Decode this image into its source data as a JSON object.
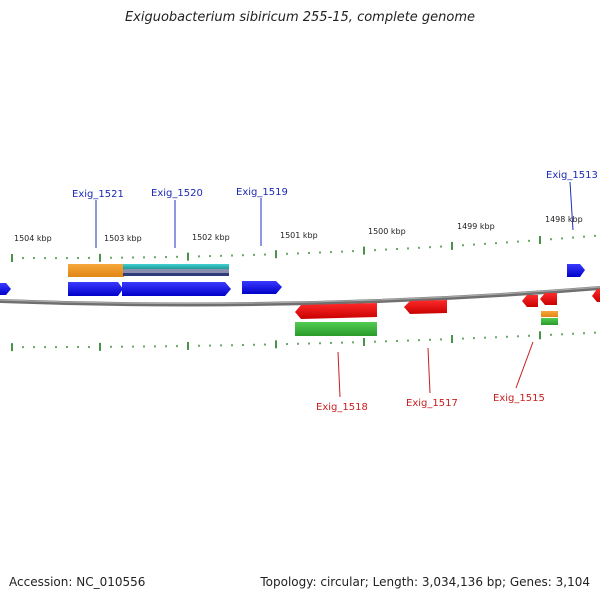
{
  "title": "Exiguobacterium sibiricum 255-15, complete genome",
  "footer": {
    "accession": "Accession: NC_010556",
    "summary": "Topology: circular; Length: 3,034,136 bp; Genes: 3,104"
  },
  "colors": {
    "forward": "#0000e6",
    "reverse": "#e60000",
    "ticks": "#1a7a1a",
    "backbone": "#808080",
    "orange": "#f29a1f",
    "green": "#3db83d",
    "teal": "#2bb8b8"
  },
  "scale": {
    "labels": [
      "1504 kbp",
      "1503 kbp",
      "1502 kbp",
      "1501 kbp",
      "1500 kbp",
      "1499 kbp",
      "1498 kbp"
    ]
  },
  "gene_labels": {
    "forward": [
      "Exig_1521",
      "Exig_1520",
      "Exig_1519",
      "Exig_1513"
    ],
    "reverse": [
      "Exig_1518",
      "Exig_1517",
      "Exig_1515"
    ]
  }
}
